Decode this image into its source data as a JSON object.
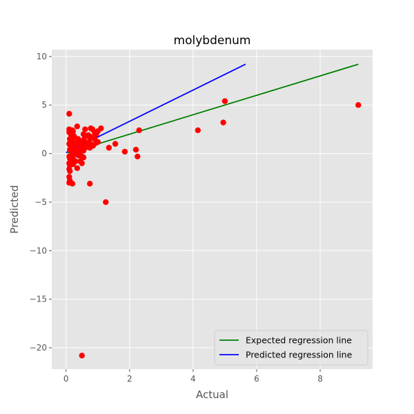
{
  "chart_data": {
    "type": "scatter",
    "title": "molybdenum",
    "xlabel": "Actual",
    "ylabel": "Predicted",
    "xlim": [
      -0.45,
      9.65
    ],
    "ylim": [
      -22.2,
      10.7
    ],
    "xticks": [
      0,
      2,
      4,
      6,
      8
    ],
    "yticks": [
      -20,
      -15,
      -10,
      -5,
      0,
      5,
      10
    ],
    "grid": true,
    "legend_position": "bottom-right",
    "colors": {
      "points": "#ff0000",
      "expected_line": "#008000",
      "predicted_line": "#0000ff",
      "plot_background": "#e5e5e5",
      "grid": "#ffffff"
    },
    "series": [
      {
        "kind": "points",
        "x": [
          0.1,
          0.1,
          0.1,
          0.12,
          0.15,
          0.18,
          0.2,
          0.22,
          0.25,
          0.12,
          0.14,
          0.16,
          0.2,
          0.25,
          0.3,
          0.1,
          0.12,
          0.15,
          0.2,
          0.22,
          0.25,
          0.28,
          0.3,
          0.12,
          0.15,
          0.18,
          0.2,
          0.25,
          0.28,
          0.3,
          0.1,
          0.12,
          0.15,
          0.2,
          0.25,
          0.3,
          0.1,
          0.12,
          0.18,
          0.22,
          0.1,
          0.12,
          0.1,
          0.12,
          0.2,
          0.1,
          0.35,
          0.38,
          0.4,
          0.45,
          0.5,
          0.55,
          0.6,
          0.65,
          0.7,
          0.75,
          0.4,
          0.45,
          0.5,
          0.55,
          0.6,
          0.65,
          0.4,
          0.5,
          0.55,
          0.6,
          0.7,
          0.75,
          0.35,
          0.45,
          0.5,
          0.55,
          0.6,
          0.48,
          0.52,
          0.58,
          0.4,
          0.55,
          0.42,
          0.58,
          0.78,
          0.83,
          0.9,
          0.95,
          1.0,
          1.1,
          0.8,
          0.9,
          1.0,
          0.78,
          0.85,
          0.95,
          0.75,
          1.35,
          1.55,
          1.85,
          2.2,
          2.25,
          2.3,
          1.25,
          0.75,
          0.5,
          4.15,
          4.95,
          5.0,
          9.2
        ],
        "y": [
          4.1,
          2.5,
          2.2,
          2.3,
          2.0,
          1.9,
          2.4,
          2.3,
          1.8,
          1.5,
          1.3,
          1.2,
          1.4,
          1.1,
          1.0,
          1.0,
          0.9,
          0.8,
          0.7,
          0.6,
          0.5,
          0.6,
          0.8,
          0.4,
          0.3,
          0.2,
          0.1,
          0.0,
          -0.1,
          0.2,
          -0.3,
          -0.5,
          -0.6,
          -0.5,
          -0.7,
          -0.8,
          -1.0,
          -1.2,
          -1.0,
          -1.1,
          -1.6,
          -1.8,
          -2.4,
          -2.8,
          -3.1,
          -3.0,
          2.8,
          1.5,
          1.3,
          1.0,
          0.8,
          1.2,
          0.9,
          0.7,
          1.1,
          0.6,
          0.4,
          0.2,
          0.5,
          0.3,
          0.6,
          0.8,
          0.0,
          -0.3,
          -0.4,
          1.8,
          1.9,
          1.6,
          -1.5,
          -0.8,
          -1.0,
          2.0,
          2.5,
          0.5,
          0.7,
          0.9,
          -0.2,
          1.4,
          1.1,
          1.3,
          2.6,
          2.5,
          2.2,
          2.0,
          2.3,
          2.6,
          1.7,
          1.5,
          1.2,
          1.0,
          0.8,
          1.1,
          0.7,
          0.6,
          1.0,
          0.2,
          0.4,
          -0.3,
          2.4,
          -5.0,
          -3.1,
          -20.8,
          2.4,
          3.2,
          5.4,
          5.0
        ]
      },
      {
        "kind": "line",
        "name": "Expected regression line",
        "x": [
          0.05,
          9.2
        ],
        "y": [
          0.05,
          9.2
        ]
      },
      {
        "kind": "line",
        "name": "Predicted regression line",
        "x": [
          0.0,
          5.65
        ],
        "y": [
          0.1,
          9.2
        ]
      }
    ]
  }
}
